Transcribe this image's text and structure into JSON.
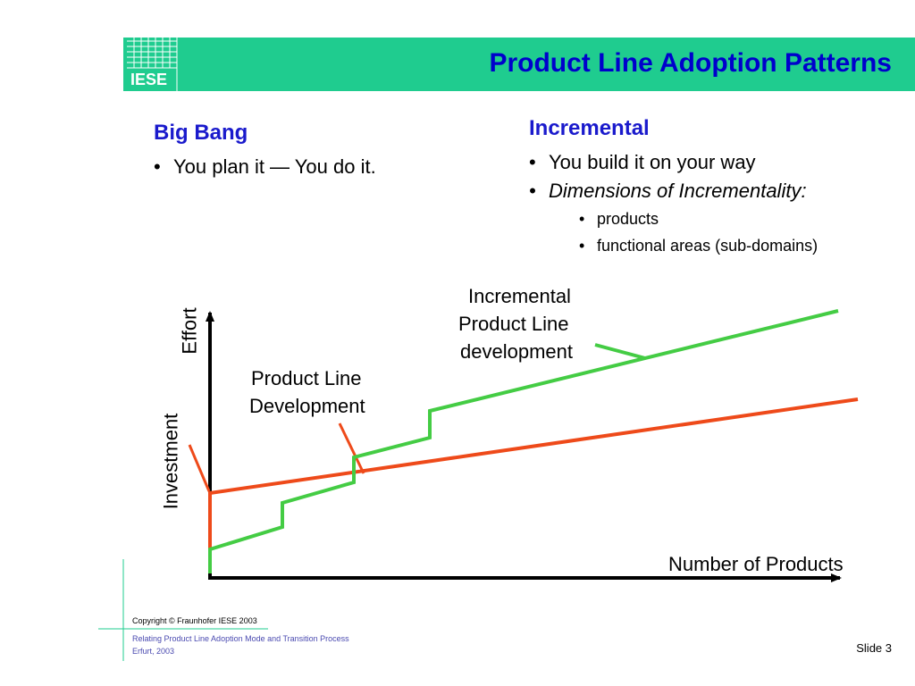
{
  "header": {
    "logo": "IESE",
    "title": "Product Line Adoption Patterns",
    "bar_color": "#1fcc8f",
    "title_color": "#0000cc"
  },
  "left_column": {
    "heading": "Big Bang",
    "bullets": [
      "You plan it — You do it."
    ]
  },
  "right_column": {
    "heading": "Incremental",
    "bullets": [
      "You build it on your way",
      "Dimensions of Incrementality:"
    ],
    "sub_bullets": [
      "products",
      "functional areas (sub-domains)"
    ]
  },
  "diagram": {
    "y_axis_label_outer": "Investment",
    "y_axis_label_inner": "Effort",
    "x_axis_label": "Number of Products",
    "incremental_label": [
      "Incremental",
      "Product Line",
      "development"
    ],
    "product_line_label": [
      "Product Line",
      "Development"
    ],
    "series_colors": {
      "big_bang": "#ee4a1a",
      "incremental": "#44cc44"
    }
  },
  "footer": {
    "copyright": "Copyright © Fraunhofer IESE 2003",
    "talk_title": "Relating Product Line Adoption Mode and Transition Process",
    "location": "Erfurt, 2003",
    "slide": "Slide 3"
  }
}
